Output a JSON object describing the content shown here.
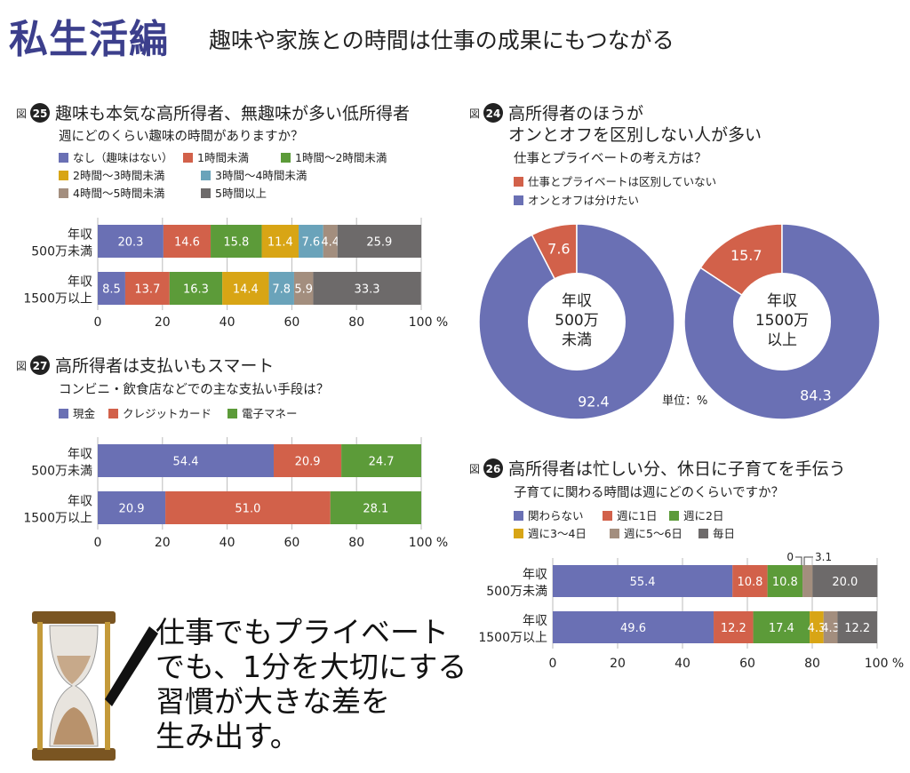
{
  "header": {
    "title": "私生活編",
    "subtitle": "趣味や家族との時間は仕事の成果にもつながる"
  },
  "fig_prefix": "図",
  "unit_note": "単位：%",
  "slogan": [
    "仕事でもプライベート",
    "でも、1分を大切にする",
    "習慣が大きな差を",
    "生み出す。"
  ],
  "colors": {
    "blue": "#6a70b4",
    "red": "#d2614a",
    "green": "#5c9b39",
    "yellow": "#d8a515",
    "teal": "#6aa3ba",
    "tan": "#a38e7e",
    "gray": "#6d6a6a"
  },
  "chart_data": [
    {
      "id": "25",
      "type": "bar",
      "stacked": true,
      "orientation": "horizontal",
      "title": "趣味も本気な高所得者、無趣味が多い低所得者",
      "subtitle": "週にどのくらい趣味の時間がありますか？",
      "categories": [
        "年収\n500万未満",
        "年収\n1500万以上"
      ],
      "series": [
        {
          "name": "なし（趣味はない）",
          "color": "#6a70b4",
          "values": [
            20.3,
            8.5
          ]
        },
        {
          "name": "1時間未満",
          "color": "#d2614a",
          "values": [
            14.6,
            13.7
          ]
        },
        {
          "name": "1時間～2時間未満",
          "color": "#5c9b39",
          "values": [
            15.8,
            16.3
          ]
        },
        {
          "name": "2時間～3時間未満",
          "color": "#d8a515",
          "values": [
            11.4,
            14.4
          ]
        },
        {
          "name": "3時間～4時間未満",
          "color": "#6aa3ba",
          "values": [
            7.6,
            7.8
          ]
        },
        {
          "name": "4時間～5時間未満",
          "color": "#a38e7e",
          "values": [
            4.4,
            5.9
          ]
        },
        {
          "name": "5時間以上",
          "color": "#6d6a6a",
          "values": [
            25.9,
            33.3
          ]
        }
      ],
      "xlim": [
        0,
        100
      ],
      "xticks": [
        "0",
        "20",
        "40",
        "60",
        "80",
        "100 %"
      ]
    },
    {
      "id": "27",
      "type": "bar",
      "stacked": true,
      "orientation": "horizontal",
      "title": "高所得者は支払いもスマート",
      "subtitle": "コンビニ・飲食店などでの主な支払い手段は？",
      "categories": [
        "年収\n500万未満",
        "年収\n1500万以上"
      ],
      "series": [
        {
          "name": "現金",
          "color": "#6a70b4",
          "values": [
            54.4,
            20.9
          ]
        },
        {
          "name": "クレジットカード",
          "color": "#d2614a",
          "values": [
            20.9,
            51.0
          ]
        },
        {
          "name": "電子マネー",
          "color": "#5c9b39",
          "values": [
            24.7,
            28.1
          ]
        }
      ],
      "xlim": [
        0,
        100
      ],
      "xticks": [
        "0",
        "20",
        "40",
        "60",
        "80",
        "100 %"
      ]
    },
    {
      "id": "24",
      "type": "pie",
      "donut": true,
      "title": "高所得者のほうが\nオンとオフを区別しない人が多い",
      "subtitle": "仕事とプライベートの考え方は？",
      "series": [
        {
          "name": "仕事とプライベートは区別していない",
          "color": "#d2614a"
        },
        {
          "name": "オンとオフは分けたい",
          "color": "#6a70b4"
        }
      ],
      "pies": [
        {
          "center_label": "年収\n500万\n未満",
          "values": [
            7.6,
            92.4
          ]
        },
        {
          "center_label": "年収\n1500万\n以上",
          "values": [
            15.7,
            84.3
          ]
        }
      ]
    },
    {
      "id": "26",
      "type": "bar",
      "stacked": true,
      "orientation": "horizontal",
      "title": "高所得者は忙しい分、休日に子育てを手伝う",
      "subtitle": "子育てに関わる時間は週にどのくらいですか？",
      "categories": [
        "年収\n500万未満",
        "年収\n1500万以上"
      ],
      "series": [
        {
          "name": "関わらない",
          "color": "#6a70b4",
          "values": [
            55.4,
            49.6
          ]
        },
        {
          "name": "週に1日",
          "color": "#d2614a",
          "values": [
            10.8,
            12.2
          ]
        },
        {
          "name": "週に2日",
          "color": "#5c9b39",
          "values": [
            10.8,
            17.4
          ]
        },
        {
          "name": "週に3～4日",
          "color": "#d8a515",
          "values": [
            0,
            4.3
          ]
        },
        {
          "name": "週に5～6日",
          "color": "#a38e7e",
          "values": [
            3.1,
            4.3
          ]
        },
        {
          "name": "毎日",
          "color": "#6d6a6a",
          "values": [
            20.0,
            12.2
          ]
        }
      ],
      "callouts": [
        "0",
        "3.1"
      ],
      "xlim": [
        0,
        100
      ],
      "xticks": [
        "0",
        "20",
        "40",
        "60",
        "80",
        "100 %"
      ]
    }
  ]
}
